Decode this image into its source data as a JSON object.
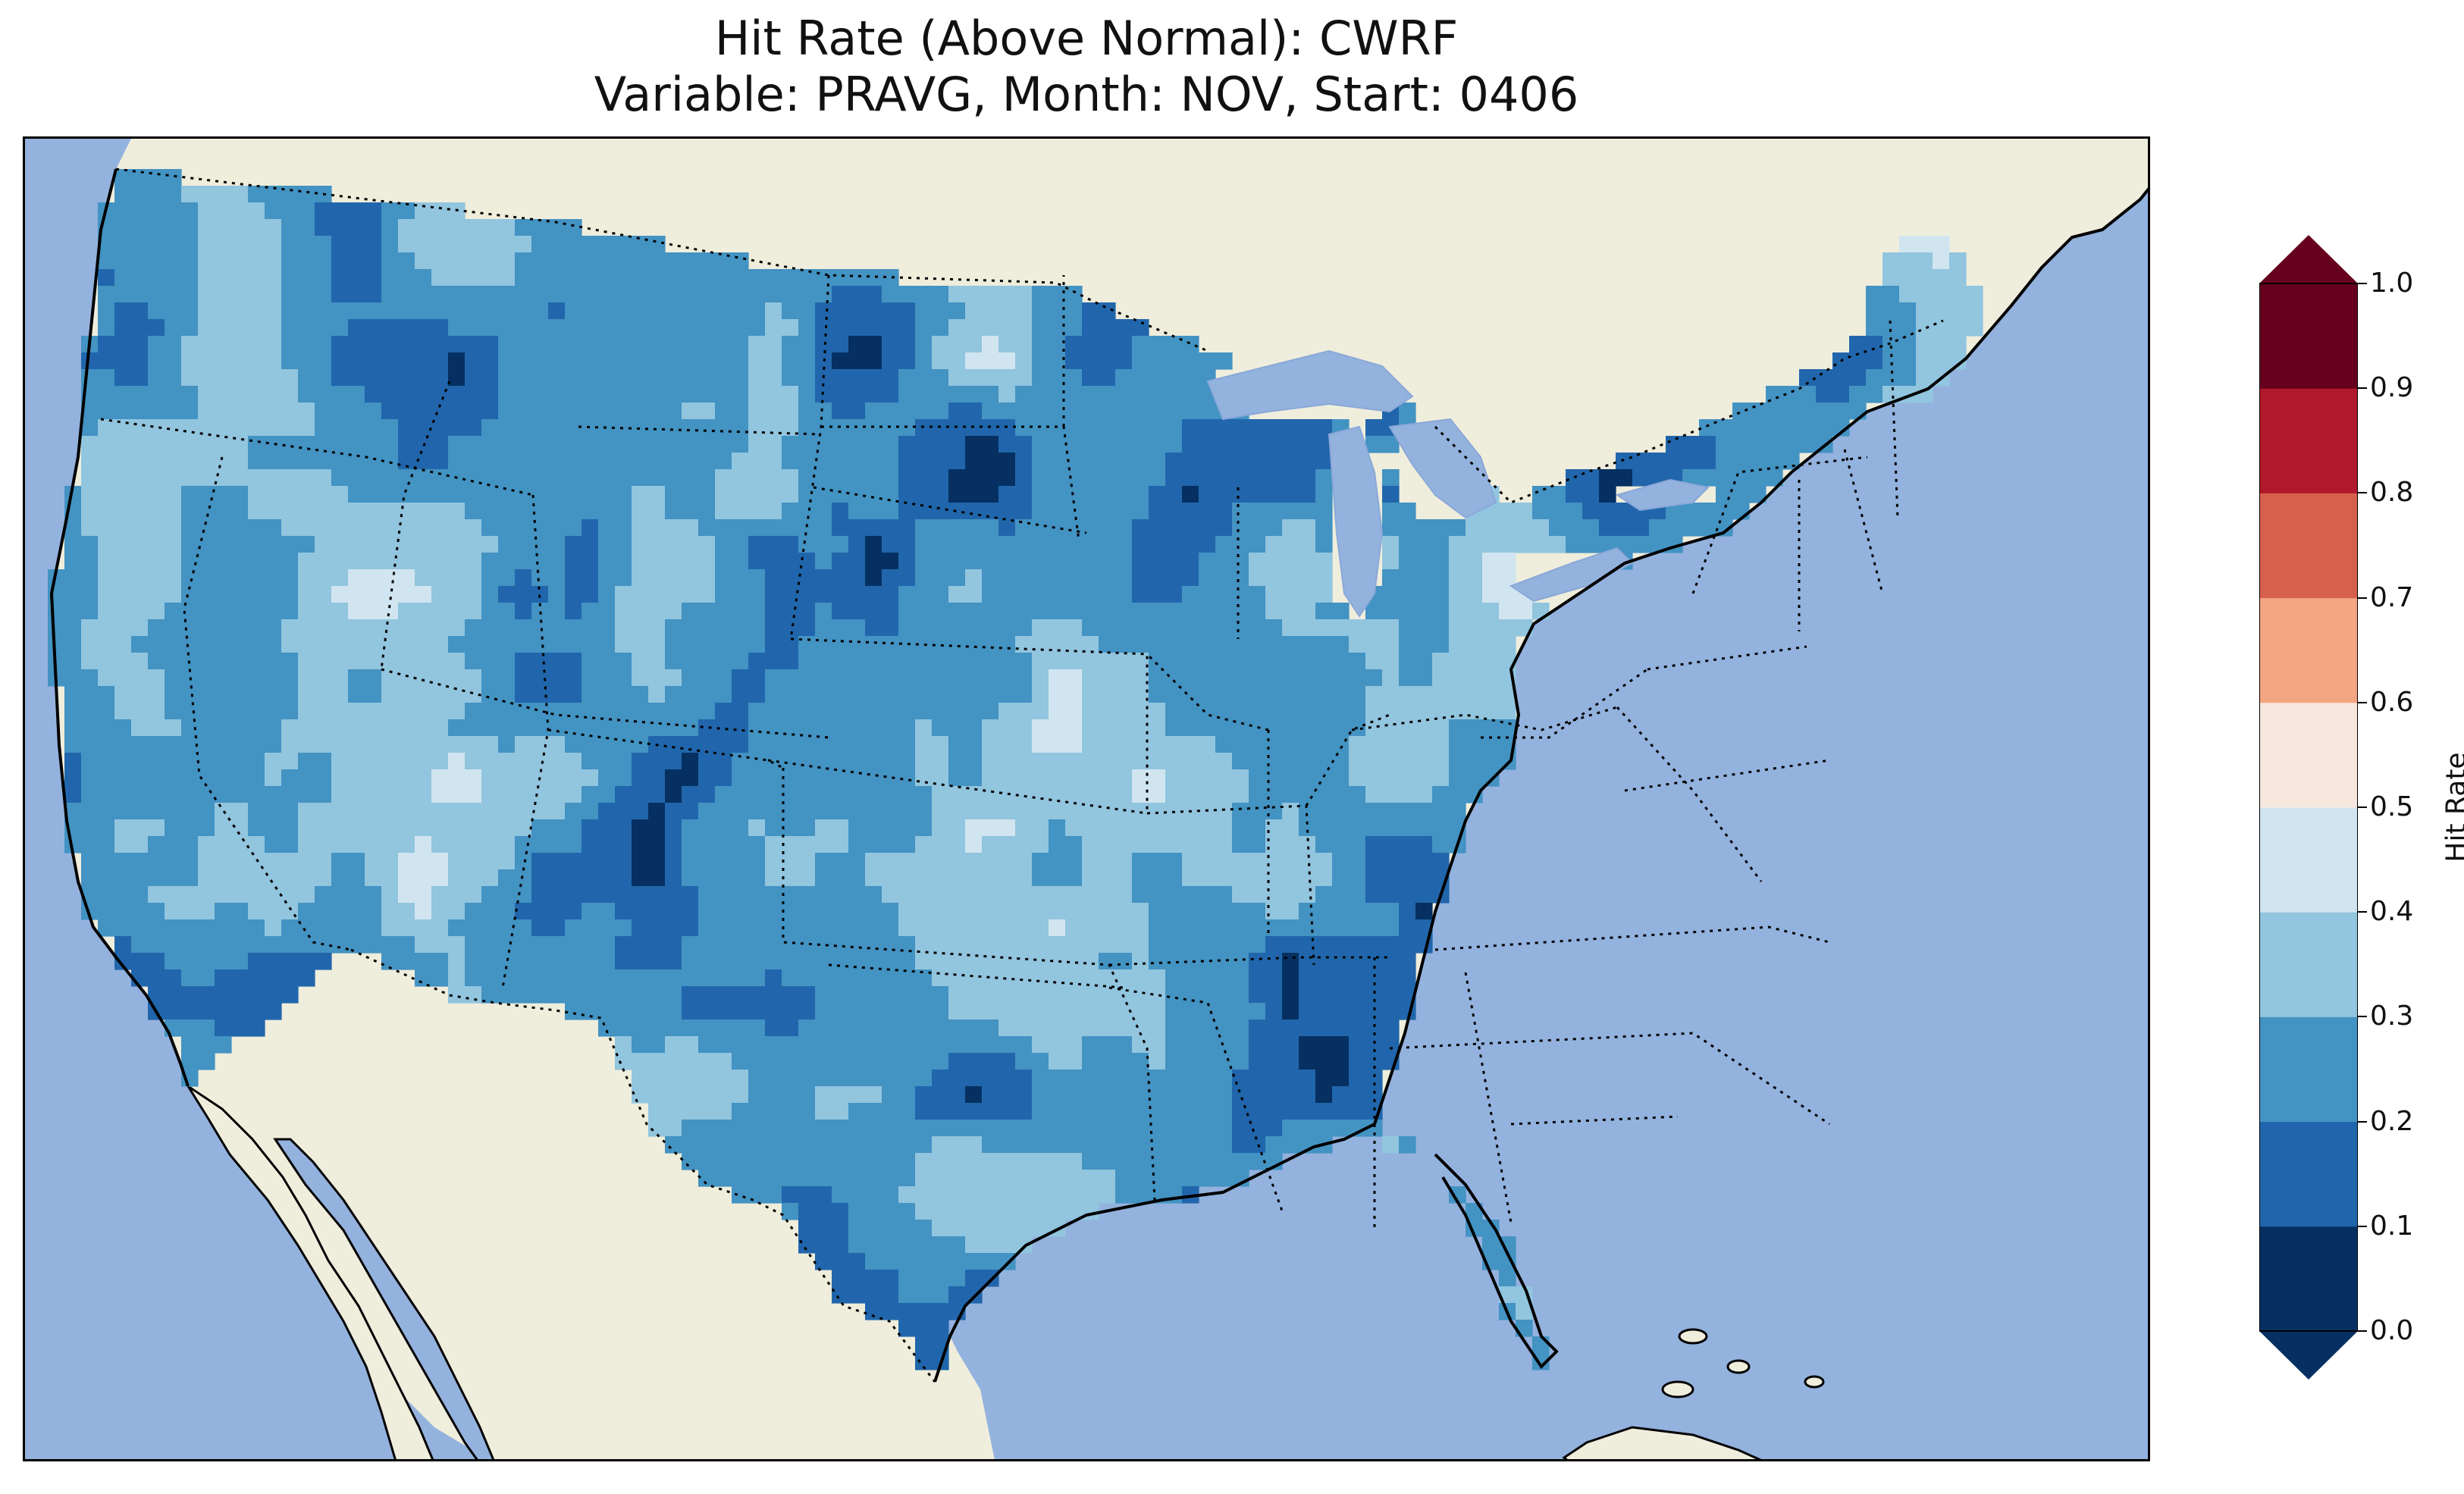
{
  "title": {
    "line1": "Hit Rate (Above Normal): CWRF",
    "line2": "Variable: PRAVG, Month: NOV, Start: 0406"
  },
  "colors": {
    "ocean": "#94b2de",
    "land": "#efeddc",
    "lakes": "#94b2de",
    "coast": "#000000",
    "borders": "#000000"
  },
  "colorbar": {
    "label": "Hit Rate",
    "ticks": [
      "0.0",
      "0.1",
      "0.2",
      "0.3",
      "0.4",
      "0.5",
      "0.6",
      "0.7",
      "0.8",
      "0.9",
      "1.0"
    ],
    "bins": [
      {
        "range": [
          0.0,
          0.1
        ],
        "color": "#053061"
      },
      {
        "range": [
          0.1,
          0.2
        ],
        "color": "#2166ac"
      },
      {
        "range": [
          0.2,
          0.3
        ],
        "color": "#4393c3"
      },
      {
        "range": [
          0.3,
          0.4
        ],
        "color": "#92c5de"
      },
      {
        "range": [
          0.4,
          0.5
        ],
        "color": "#d1e5f0"
      },
      {
        "range": [
          0.5,
          0.6
        ],
        "color": "#f7e8df"
      },
      {
        "range": [
          0.6,
          0.7
        ],
        "color": "#f4a582"
      },
      {
        "range": [
          0.7,
          0.8
        ],
        "color": "#d6604d"
      },
      {
        "range": [
          0.8,
          0.9
        ],
        "color": "#b2182b"
      },
      {
        "range": [
          0.9,
          1.0
        ],
        "color": "#67001f"
      }
    ],
    "extend_low": "#053061",
    "extend_high": "#67001f"
  },
  "map": {
    "region": "Contiguous United States",
    "field_colors": {
      "low": "#2166ac",
      "mid": "#4393c3",
      "high": "#92c5de",
      "vhigh": "#d1e5f0",
      "min": "#053061"
    }
  }
}
